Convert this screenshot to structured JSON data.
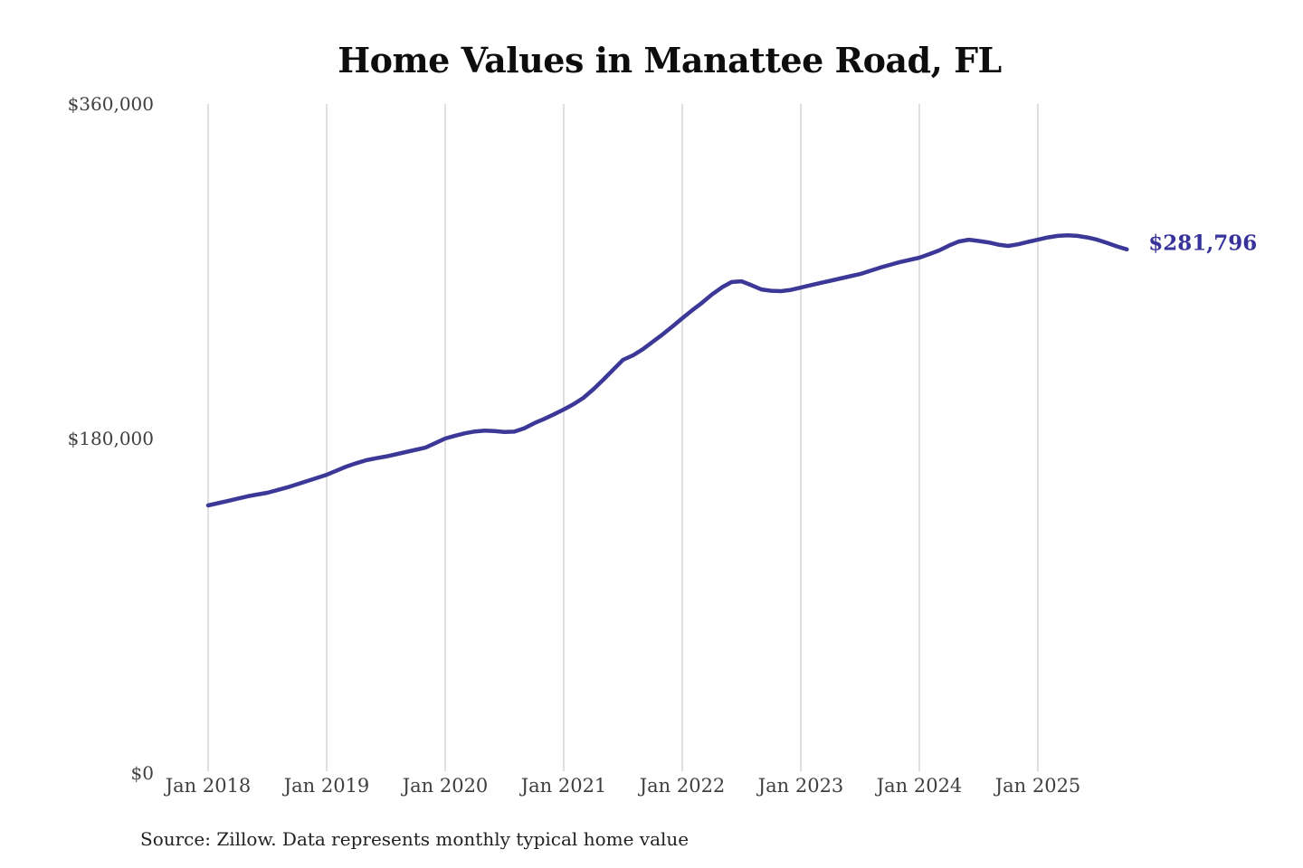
{
  "title": "Home Values in Manattee Road, FL",
  "source_note": "Source: Zillow. Data represents monthly typical home value",
  "colors": {
    "line": "#3c3898",
    "grid": "#cccccc",
    "axis_text": "#3f3f3f",
    "title_text": "#0d0d0d",
    "end_label_text": "#38339a",
    "source_text": "#222222",
    "background": "#ffffff"
  },
  "chart_data": {
    "type": "line",
    "title": "Home Values in Manattee Road, FL",
    "xlabel": "",
    "ylabel": "",
    "ylim": [
      0,
      360000
    ],
    "grid": "vertical-only",
    "legend": "none",
    "line_width": 4.5,
    "y_ticks": [
      {
        "label": "$360,000",
        "value": 360000
      },
      {
        "label": "$180,000",
        "value": 180000
      },
      {
        "label": "$0",
        "value": 0
      }
    ],
    "x_tick_labels": [
      "Jan 2018",
      "Jan 2019",
      "Jan 2020",
      "Jan 2021",
      "Jan 2022",
      "Jan 2023",
      "Jan 2024",
      "Jan 2025"
    ],
    "end_annotation": {
      "label": "$281,796",
      "value": 281796
    },
    "x": [
      "2018-01",
      "2018-02",
      "2018-03",
      "2018-04",
      "2018-05",
      "2018-06",
      "2018-07",
      "2018-08",
      "2018-09",
      "2018-10",
      "2018-11",
      "2018-12",
      "2019-01",
      "2019-02",
      "2019-03",
      "2019-04",
      "2019-05",
      "2019-06",
      "2019-07",
      "2019-08",
      "2019-09",
      "2019-10",
      "2019-11",
      "2019-12",
      "2020-01",
      "2020-02",
      "2020-03",
      "2020-04",
      "2020-05",
      "2020-06",
      "2020-07",
      "2020-08",
      "2020-09",
      "2020-10",
      "2020-11",
      "2020-12",
      "2021-01",
      "2021-02",
      "2021-03",
      "2021-04",
      "2021-05",
      "2021-06",
      "2021-07",
      "2021-08",
      "2021-09",
      "2021-10",
      "2021-11",
      "2021-12",
      "2022-01",
      "2022-02",
      "2022-03",
      "2022-04",
      "2022-05",
      "2022-06",
      "2022-07",
      "2022-08",
      "2022-09",
      "2022-10",
      "2022-11",
      "2022-12",
      "2023-01",
      "2023-02",
      "2023-03",
      "2023-04",
      "2023-05",
      "2023-06",
      "2023-07",
      "2023-08",
      "2023-09",
      "2023-10",
      "2023-11",
      "2023-12",
      "2024-01",
      "2024-02",
      "2024-03",
      "2024-04",
      "2024-05",
      "2024-06",
      "2024-07",
      "2024-08",
      "2024-09",
      "2024-10",
      "2024-11",
      "2024-12",
      "2025-01",
      "2025-02",
      "2025-03",
      "2025-04",
      "2025-05",
      "2025-06",
      "2025-07",
      "2025-08",
      "2025-09",
      "2025-10"
    ],
    "values": [
      144000,
      145200,
      146400,
      147700,
      148900,
      149900,
      150800,
      152200,
      153700,
      155400,
      157100,
      158800,
      160500,
      162700,
      164900,
      166700,
      168300,
      169400,
      170300,
      171500,
      172700,
      173900,
      175100,
      177500,
      180000,
      181500,
      182800,
      183800,
      184300,
      184000,
      183500,
      183700,
      185500,
      188200,
      190500,
      193000,
      195600,
      198500,
      201900,
      206500,
      211600,
      217000,
      222300,
      224700,
      228000,
      232000,
      236000,
      240300,
      244700,
      249000,
      253000,
      257500,
      261300,
      264200,
      264600,
      262500,
      260200,
      259500,
      259300,
      260000,
      261200,
      262500,
      263700,
      264900,
      266100,
      267300,
      268500,
      270200,
      271900,
      273400,
      274900,
      276100,
      277300,
      279200,
      281200,
      283800,
      286000,
      287000,
      286300,
      285500,
      284300,
      283600,
      284500,
      285800,
      287000,
      288200,
      289000,
      289300,
      289000,
      288200,
      287000,
      285300,
      283400,
      281796
    ]
  }
}
